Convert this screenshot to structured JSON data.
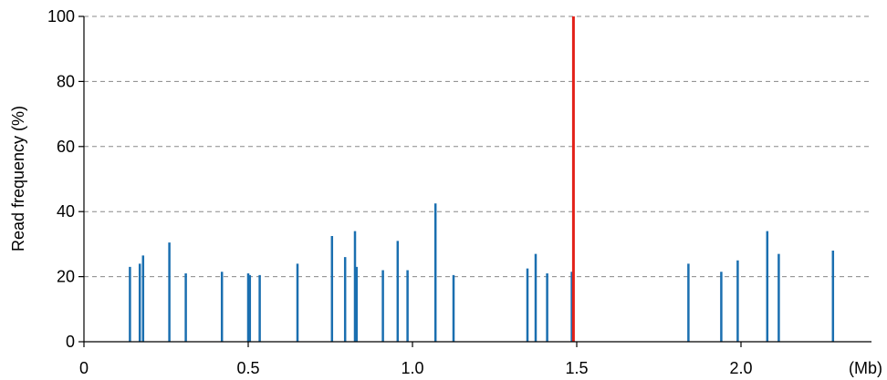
{
  "chart_data": {
    "type": "bar",
    "title": "",
    "xlabel": "",
    "ylabel": "Read frequency (%)",
    "x_unit": "(Mb)",
    "xlim": [
      0,
      2.4
    ],
    "ylim": [
      0,
      100
    ],
    "x_ticks": [
      {
        "value": 0,
        "label": "0"
      },
      {
        "value": 0.5,
        "label": "0.5"
      },
      {
        "value": 1.0,
        "label": "1.0"
      },
      {
        "value": 1.5,
        "label": "1.5"
      },
      {
        "value": 2.0,
        "label": "2.0"
      }
    ],
    "y_ticks": [
      {
        "value": 0,
        "label": "0"
      },
      {
        "value": 20,
        "label": "20"
      },
      {
        "value": 40,
        "label": "40"
      },
      {
        "value": 60,
        "label": "60"
      },
      {
        "value": 80,
        "label": "80"
      },
      {
        "value": 100,
        "label": "100"
      }
    ],
    "grid": "horizontal dashed at y-ticks",
    "colors": {
      "default": "#1a6fb0",
      "highlight": "#e32119"
    },
    "series": [
      {
        "points": [
          {
            "x": 0.14,
            "y": 23
          },
          {
            "x": 0.17,
            "y": 24
          },
          {
            "x": 0.18,
            "y": 26.5
          },
          {
            "x": 0.26,
            "y": 30.5
          },
          {
            "x": 0.31,
            "y": 21
          },
          {
            "x": 0.42,
            "y": 21.5
          },
          {
            "x": 0.5,
            "y": 21
          },
          {
            "x": 0.505,
            "y": 20.5
          },
          {
            "x": 0.535,
            "y": 20.5
          },
          {
            "x": 0.65,
            "y": 24
          },
          {
            "x": 0.755,
            "y": 32.5
          },
          {
            "x": 0.795,
            "y": 26
          },
          {
            "x": 0.825,
            "y": 34
          },
          {
            "x": 0.83,
            "y": 23
          },
          {
            "x": 0.91,
            "y": 22
          },
          {
            "x": 0.955,
            "y": 31
          },
          {
            "x": 0.985,
            "y": 22
          },
          {
            "x": 1.07,
            "y": 42.5
          },
          {
            "x": 1.125,
            "y": 20.5
          },
          {
            "x": 1.35,
            "y": 22.5
          },
          {
            "x": 1.375,
            "y": 27
          },
          {
            "x": 1.41,
            "y": 21
          },
          {
            "x": 1.485,
            "y": 21.5
          },
          {
            "x": 1.49,
            "y": 100,
            "highlight": true
          },
          {
            "x": 1.84,
            "y": 24
          },
          {
            "x": 1.94,
            "y": 21.5
          },
          {
            "x": 1.99,
            "y": 25
          },
          {
            "x": 2.08,
            "y": 34
          },
          {
            "x": 2.115,
            "y": 27
          },
          {
            "x": 2.28,
            "y": 28
          }
        ]
      }
    ]
  }
}
